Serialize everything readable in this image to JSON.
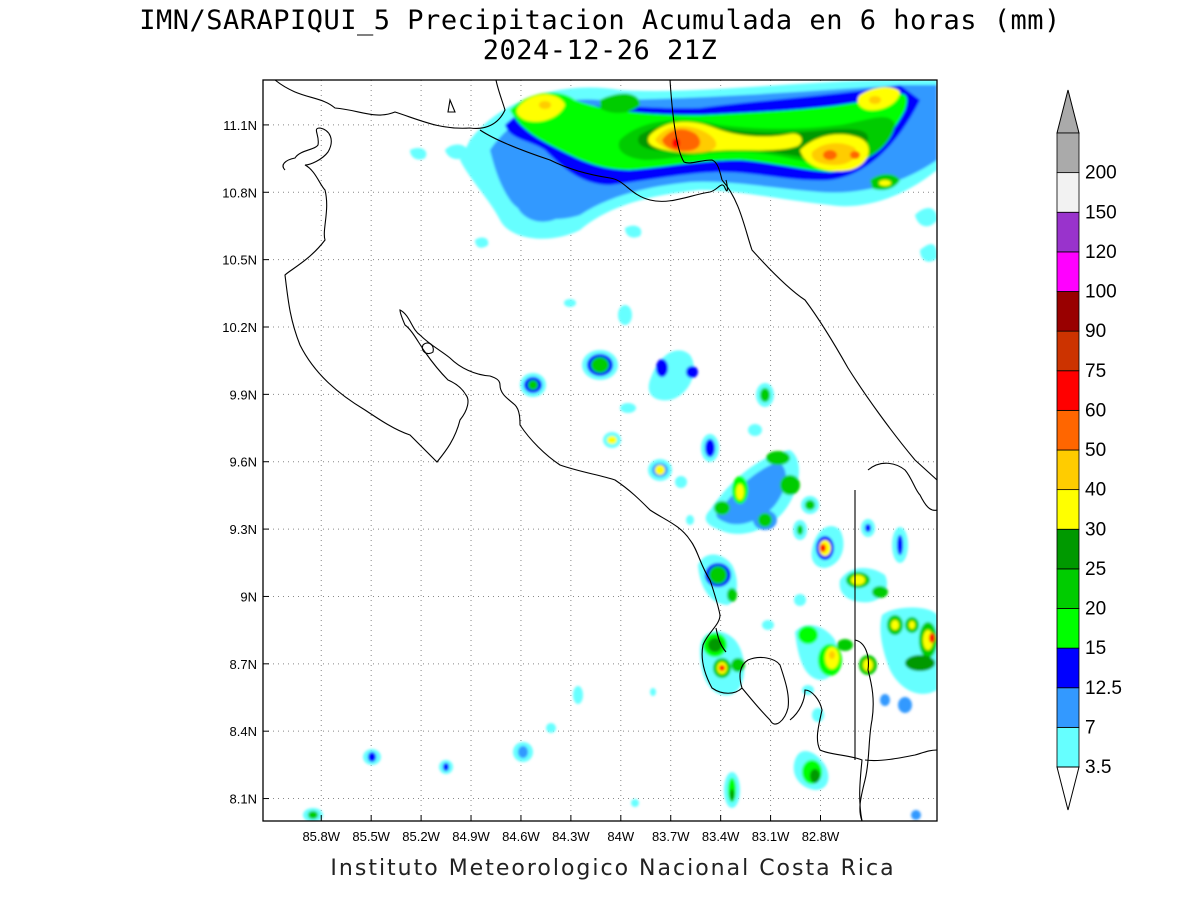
{
  "title": "IMN/SARAPIQUI_5 Precipitacion Acumulada en 6 horas (mm)",
  "subtitle": "2024-12-26 21Z",
  "footer": "Instituto Meteorologico Nacional Costa Rica",
  "map": {
    "lon_range": [
      -86.15,
      -82.1
    ],
    "lat_range": [
      8.0,
      11.3
    ],
    "x_ticks": [
      "85.8W",
      "85.5W",
      "85.2W",
      "84.9W",
      "84.6W",
      "84.3W",
      "84W",
      "83.7W",
      "83.4W",
      "83.1W",
      "82.8W"
    ],
    "y_ticks": [
      "11.1N",
      "10.8N",
      "10.5N",
      "10.2N",
      "9.9N",
      "9.6N",
      "9.3N",
      "9N",
      "8.7N",
      "8.4N",
      "8.1N"
    ],
    "grid": true
  },
  "colorbar": {
    "labels": [
      "3.5",
      "7",
      "12.5",
      "15",
      "20",
      "25",
      "30",
      "40",
      "50",
      "60",
      "75",
      "90",
      "100",
      "120",
      "150",
      "200"
    ],
    "colors": [
      "#66ffff",
      "#3399ff",
      "#0000ff",
      "#00ff00",
      "#00cc00",
      "#009900",
      "#ffff00",
      "#ffcc00",
      "#ff6600",
      "#ff0000",
      "#cc3300",
      "#990000",
      "#ff00ff",
      "#9933cc",
      "#f2f2f2",
      "#aaaaaa"
    ]
  }
}
